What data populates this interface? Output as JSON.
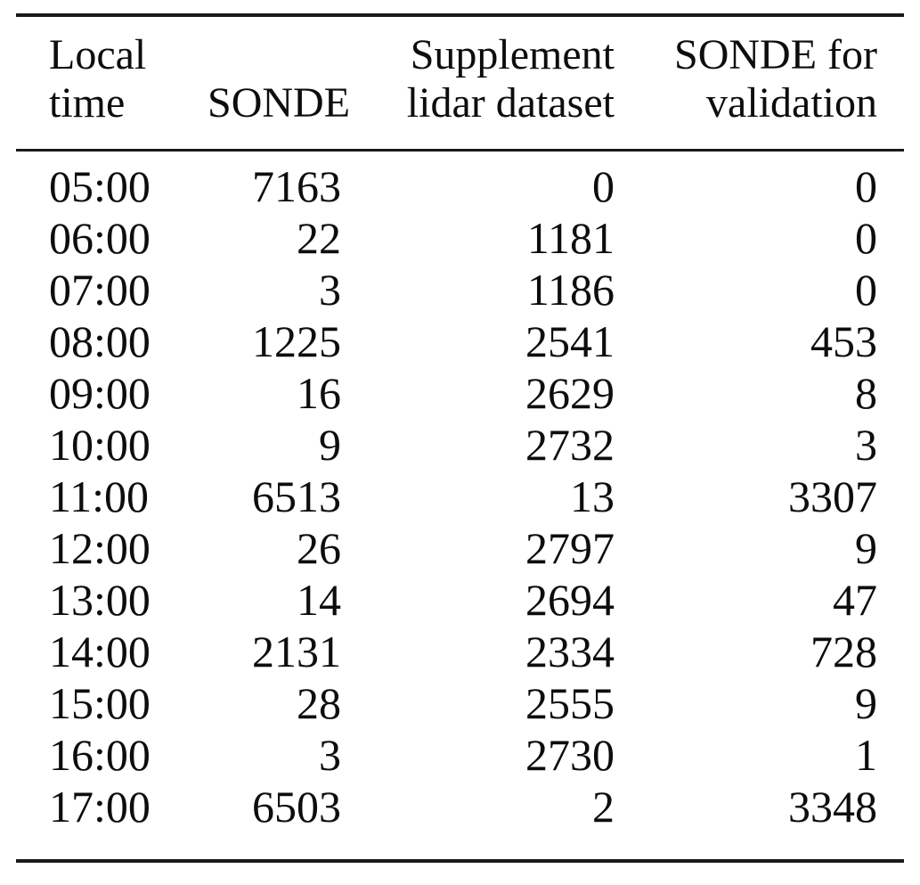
{
  "colors": {
    "background": "#ffffff",
    "text": "#0d0d0d",
    "rule": "#1a1a1a"
  },
  "chart_data": {
    "type": "table",
    "columns": [
      "Local time",
      "SONDE",
      "Supplement lidar dataset",
      "SONDE for validation"
    ],
    "header_lines": [
      [
        "Local",
        "time"
      ],
      [
        "",
        "SONDE"
      ],
      [
        "Supplement",
        "lidar dataset"
      ],
      [
        "SONDE for",
        "validation"
      ]
    ],
    "rows": [
      [
        "05:00",
        "7163",
        "0",
        "0"
      ],
      [
        "06:00",
        "22",
        "1181",
        "0"
      ],
      [
        "07:00",
        "3",
        "1186",
        "0"
      ],
      [
        "08:00",
        "1225",
        "2541",
        "453"
      ],
      [
        "09:00",
        "16",
        "2629",
        "8"
      ],
      [
        "10:00",
        "9",
        "2732",
        "3"
      ],
      [
        "11:00",
        "6513",
        "13",
        "3307"
      ],
      [
        "12:00",
        "26",
        "2797",
        "9"
      ],
      [
        "13:00",
        "14",
        "2694",
        "47"
      ],
      [
        "14:00",
        "2131",
        "2334",
        "728"
      ],
      [
        "15:00",
        "28",
        "2555",
        "9"
      ],
      [
        "16:00",
        "3",
        "2730",
        "1"
      ],
      [
        "17:00",
        "6503",
        "2",
        "3348"
      ]
    ]
  }
}
